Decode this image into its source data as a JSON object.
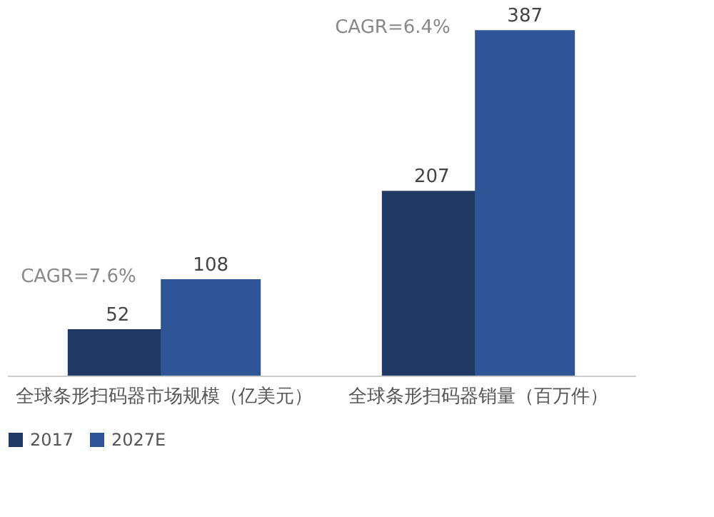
{
  "chart_data": {
    "type": "bar",
    "categories": [
      "全球条形扫码器市场规模（亿美元）",
      "全球条形扫码器销量（百万件）"
    ],
    "series": [
      {
        "name": "2017",
        "color": "#1f3864",
        "values": [
          52,
          207
        ]
      },
      {
        "name": "2027E",
        "color": "#2f5597",
        "values": [
          108,
          387
        ]
      }
    ],
    "annotations": [
      "CAGR=7.6%",
      "CAGR=6.4%"
    ],
    "data_labels": true,
    "legend": "bottom",
    "grid": false
  }
}
